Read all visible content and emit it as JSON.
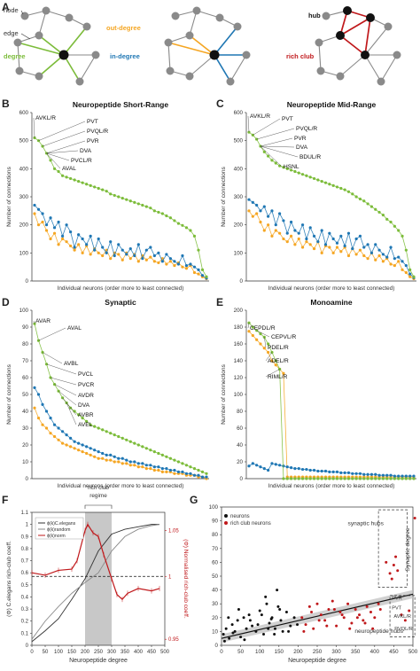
{
  "colors": {
    "green": "#7cbc3a",
    "orange": "#f5a623",
    "blue": "#1f77b4",
    "red": "#c0181b",
    "gray": "#8a8a8a",
    "black": "#111111",
    "dark": "#333333"
  },
  "panel_a": {
    "letter": "A",
    "net1": {
      "node_label": "node",
      "edge_label": "edge",
      "degree_label": "degree"
    },
    "net2": {
      "out_label": "out-degree",
      "in_label": "in-degree"
    },
    "net3": {
      "hub_label": "hub",
      "rich_label": "rich club"
    }
  },
  "chart_data": [
    {
      "panel": "B",
      "type": "scatter",
      "title": "Neuropeptide Short-Range",
      "xlabel": "Individual neurons (order more to least connected)",
      "ylabel": "Number of connections",
      "ylim": [
        0,
        600
      ],
      "yticks": [
        0,
        100,
        200,
        300,
        400,
        500,
        600
      ],
      "annotations": [
        "AVKL/R",
        "PVT",
        "PVQL/R",
        "PVR",
        "DVA",
        "PVCL/R",
        "AVAL"
      ],
      "series": [
        {
          "color": "green",
          "values": [
            510,
            500,
            480,
            455,
            430,
            400,
            390,
            375,
            370,
            365,
            360,
            355,
            350,
            345,
            340,
            335,
            330,
            325,
            320,
            310,
            305,
            300,
            295,
            290,
            285,
            280,
            275,
            270,
            265,
            260,
            250,
            245,
            240,
            232,
            225,
            215,
            205,
            198,
            190,
            180,
            160,
            110,
            40,
            15
          ]
        },
        {
          "color": "blue",
          "values": [
            270,
            255,
            240,
            200,
            225,
            190,
            210,
            160,
            200,
            175,
            120,
            165,
            150,
            130,
            160,
            110,
            150,
            120,
            100,
            140,
            90,
            130,
            110,
            95,
            115,
            90,
            130,
            80,
            110,
            120,
            90,
            100,
            70,
            95,
            80,
            70,
            60,
            90,
            55,
            60,
            50,
            40,
            20,
            10
          ]
        },
        {
          "color": "orange",
          "values": [
            240,
            200,
            210,
            180,
            150,
            170,
            130,
            150,
            140,
            125,
            110,
            130,
            100,
            125,
            95,
            115,
            100,
            90,
            110,
            80,
            100,
            95,
            75,
            100,
            80,
            95,
            70,
            90,
            75,
            85,
            70,
            65,
            80,
            60,
            70,
            55,
            65,
            50,
            45,
            55,
            30,
            25,
            15,
            8
          ]
        }
      ]
    },
    {
      "panel": "C",
      "type": "scatter",
      "title": "Neuropeptide Mid-Range",
      "xlabel": "Individual neurons (order more to least connected)",
      "ylabel": "Number of connections",
      "ylim": [
        0,
        600
      ],
      "yticks": [
        0,
        100,
        200,
        300,
        400,
        500,
        600
      ],
      "annotations": [
        "AVKL/R",
        "PVT",
        "PVQL/R",
        "PVR",
        "DVA",
        "BDUL/R",
        "HSNL"
      ],
      "series": [
        {
          "color": "green",
          "values": [
            530,
            520,
            505,
            480,
            460,
            445,
            430,
            420,
            410,
            405,
            400,
            395,
            390,
            385,
            380,
            375,
            370,
            365,
            360,
            355,
            350,
            345,
            340,
            335,
            330,
            325,
            318,
            310,
            300,
            292,
            285,
            275,
            265,
            255,
            245,
            235,
            220,
            210,
            195,
            180,
            160,
            110,
            40,
            15
          ]
        },
        {
          "color": "blue",
          "values": [
            290,
            280,
            270,
            250,
            265,
            230,
            250,
            200,
            240,
            215,
            170,
            210,
            180,
            170,
            200,
            150,
            190,
            160,
            140,
            180,
            130,
            170,
            150,
            135,
            160,
            125,
            170,
            115,
            150,
            160,
            120,
            130,
            100,
            130,
            110,
            95,
            85,
            120,
            80,
            85,
            70,
            55,
            25,
            12
          ]
        },
        {
          "color": "orange",
          "values": [
            250,
            230,
            240,
            210,
            180,
            200,
            160,
            180,
            170,
            150,
            140,
            160,
            130,
            150,
            120,
            140,
            130,
            115,
            140,
            100,
            125,
            120,
            100,
            120,
            105,
            120,
            90,
            115,
            95,
            110,
            90,
            80,
            100,
            75,
            90,
            70,
            80,
            60,
            55,
            70,
            40,
            30,
            15,
            8
          ]
        }
      ]
    },
    {
      "panel": "D",
      "type": "scatter",
      "title": "Synaptic",
      "xlabel": "Individual neurons (order more to least connected)",
      "ylabel": "Number of connections",
      "ylim": [
        0,
        100
      ],
      "yticks": [
        0,
        10,
        20,
        30,
        40,
        50,
        60,
        70,
        80,
        90,
        100
      ],
      "annotations": [
        "AVAR",
        "AVAL",
        "AVBL",
        "PVCL",
        "PVCR",
        "AVDR",
        "DVA",
        "AVBR",
        "AVEL"
      ],
      "series": [
        {
          "color": "green",
          "values": [
            92,
            82,
            75,
            68,
            60,
            56,
            52,
            48,
            45,
            42,
            40,
            38,
            36,
            34,
            32,
            31,
            30,
            29,
            28,
            27,
            26,
            25,
            24,
            23,
            22,
            21,
            20,
            19,
            18,
            17,
            16,
            15,
            14,
            13,
            12,
            11,
            10,
            9,
            8,
            7,
            6,
            5,
            4,
            3
          ]
        },
        {
          "color": "blue",
          "values": [
            54,
            50,
            44,
            40,
            36,
            32,
            30,
            28,
            26,
            24,
            22,
            21,
            20,
            19,
            18,
            17,
            16,
            15,
            14,
            14,
            13,
            12,
            12,
            11,
            10,
            10,
            9,
            9,
            8,
            8,
            7,
            7,
            6,
            6,
            5,
            5,
            4,
            4,
            3,
            3,
            2,
            2,
            1,
            1
          ]
        },
        {
          "color": "orange",
          "values": [
            42,
            36,
            32,
            30,
            27,
            25,
            23,
            21,
            20,
            19,
            18,
            17,
            16,
            15,
            14,
            13,
            12,
            12,
            11,
            11,
            10,
            10,
            9,
            9,
            8,
            8,
            7,
            7,
            6,
            6,
            5,
            5,
            4,
            4,
            4,
            3,
            3,
            3,
            2,
            2,
            2,
            1,
            1,
            0
          ]
        }
      ]
    },
    {
      "panel": "E",
      "type": "line",
      "title": "Monoamine",
      "xlabel": "Individual neurons (order more to least connected)",
      "ylabel": "Number of connections",
      "ylim": [
        0,
        200
      ],
      "yticks": [
        0,
        20,
        40,
        60,
        80,
        100,
        120,
        140,
        160,
        180,
        200
      ],
      "annotations": [
        "CEPDL/R",
        "CEPVL/R",
        "PDEL/R",
        "ADEL/R",
        "RIML/R"
      ],
      "series": [
        {
          "color": "green",
          "values": [
            185,
            180,
            176,
            172,
            168,
            160,
            150,
            140,
            130,
            0,
            0,
            0,
            0,
            0,
            0,
            0,
            0,
            0,
            0,
            0,
            0,
            0,
            0,
            0,
            0,
            0,
            0,
            0,
            0,
            0,
            0,
            0,
            0,
            0,
            0,
            0,
            0,
            0,
            0,
            0,
            0,
            0,
            0,
            0
          ]
        },
        {
          "color": "blue",
          "values": [
            15,
            18,
            16,
            14,
            12,
            10,
            18,
            17,
            16,
            15,
            14,
            13,
            12,
            12,
            11,
            11,
            10,
            10,
            9,
            9,
            9,
            8,
            8,
            8,
            7,
            7,
            7,
            6,
            6,
            6,
            5,
            5,
            5,
            5,
            4,
            4,
            4,
            4,
            3,
            3,
            3,
            3,
            3,
            3
          ]
        },
        {
          "color": "orange",
          "values": [
            175,
            170,
            165,
            160,
            155,
            150,
            140,
            135,
            130,
            125,
            2,
            2,
            2,
            2,
            2,
            2,
            2,
            2,
            2,
            2,
            2,
            2,
            2,
            2,
            2,
            2,
            2,
            2,
            2,
            2,
            2,
            2,
            2,
            2,
            2,
            2,
            2,
            2,
            2,
            2,
            2,
            2,
            2,
            2
          ]
        }
      ]
    },
    {
      "panel": "F",
      "type": "line",
      "title": "",
      "xlabel": "Neuropeptide degree",
      "ylabel": "(Φ) C.elegans rich-club coeff.",
      "ylabel_right": "(Φ) Normalised rich-club coeff.",
      "regime_label": "rich club regime",
      "shaded_range": [
        200,
        300
      ],
      "dashed_y": 0.57,
      "ylim": [
        0,
        1.1
      ],
      "xlim": [
        0,
        500
      ],
      "xticks": [
        0,
        50,
        100,
        150,
        200,
        250,
        300,
        350,
        400,
        450,
        500
      ],
      "yticks_left": [
        0,
        0.1,
        0.2,
        0.3,
        0.4,
        0.5,
        0.6,
        0.7,
        0.8,
        0.9,
        1,
        1.1
      ],
      "yticks_right": [
        "0.95",
        "1",
        "1.05"
      ],
      "legend": [
        "ɸ(k)C.elegans",
        "ɸ(k)random",
        "ɸ(k)norm"
      ],
      "series": [
        {
          "name": "ɸ(k)C.elegans",
          "color": "dark",
          "x": [
            0,
            50,
            100,
            150,
            200,
            250,
            300,
            350,
            400,
            450,
            480
          ],
          "y": [
            0.03,
            0.12,
            0.22,
            0.38,
            0.55,
            0.78,
            0.92,
            0.96,
            0.98,
            1.0,
            1.0
          ]
        },
        {
          "name": "ɸ(k)random",
          "color": "gray",
          "x": [
            0,
            50,
            100,
            150,
            200,
            250,
            300,
            350,
            400,
            450,
            480
          ],
          "y": [
            0.05,
            0.2,
            0.32,
            0.43,
            0.52,
            0.6,
            0.78,
            0.9,
            0.96,
            0.99,
            1.0
          ]
        },
        {
          "name": "ɸ(k)norm",
          "color": "red",
          "x": [
            0,
            50,
            100,
            150,
            170,
            200,
            210,
            230,
            250,
            270,
            300,
            320,
            340,
            360,
            400,
            450,
            480
          ],
          "y": [
            0.6,
            0.58,
            0.62,
            0.63,
            0.7,
            0.95,
            1.0,
            0.93,
            0.9,
            0.75,
            0.55,
            0.42,
            0.38,
            0.43,
            0.47,
            0.45,
            0.47
          ]
        }
      ]
    },
    {
      "panel": "G",
      "type": "scatter",
      "title": "",
      "xlabel": "Neuropeptide degree",
      "ylabel": "Synaptic degree",
      "xlim": [
        0,
        500
      ],
      "ylim": [
        0,
        100
      ],
      "xticks": [
        0,
        50,
        100,
        150,
        200,
        250,
        300,
        350,
        400,
        450,
        500
      ],
      "yticks": [
        0,
        10,
        20,
        30,
        40,
        50,
        60,
        70,
        80,
        90,
        100
      ],
      "legend": [
        "neurons",
        "rich club neurons"
      ],
      "box_labels": [
        "synaptic hubs",
        "neuropeptide hubs"
      ],
      "point_labels": [
        "PVR",
        "PVT",
        "AVKL/R",
        "PVQL/R"
      ],
      "fit_line": {
        "x": [
          0,
          500
        ],
        "y": [
          5,
          37
        ]
      },
      "series": [
        {
          "name": "neurons",
          "color": "black",
          "x": [
            5,
            12,
            20,
            28,
            35,
            42,
            50,
            58,
            65,
            72,
            80,
            90,
            100,
            110,
            118,
            125,
            132,
            140,
            148,
            155,
            160,
            170,
            180,
            8,
            18,
            30,
            45,
            60,
            75,
            95,
            105,
            115,
            122,
            130,
            138,
            145,
            152,
            175,
            190,
            198
          ],
          "y": [
            8,
            12,
            5,
            15,
            10,
            18,
            6,
            20,
            12,
            22,
            14,
            10,
            25,
            8,
            30,
            16,
            20,
            12,
            28,
            18,
            10,
            24,
            14,
            3,
            20,
            9,
            26,
            4,
            18,
            15,
            22,
            35,
            12,
            19,
            8,
            40,
            26,
            10,
            20,
            15
          ]
        },
        {
          "name": "rich club neurons",
          "color": "red",
          "x": [
            210,
            220,
            230,
            240,
            250,
            260,
            270,
            280,
            290,
            300,
            310,
            320,
            330,
            340,
            350,
            360,
            370,
            380,
            390,
            400,
            410,
            215,
            235,
            255,
            275,
            295,
            315,
            335,
            355,
            375,
            395,
            415,
            430,
            440,
            445,
            450,
            455,
            460,
            470,
            480,
            490,
            505
          ],
          "y": [
            20,
            15,
            28,
            12,
            30,
            22,
            18,
            26,
            32,
            14,
            24,
            20,
            30,
            16,
            26,
            22,
            18,
            28,
            24,
            20,
            30,
            10,
            24,
            18,
            14,
            26,
            22,
            12,
            20,
            16,
            12,
            26,
            60,
            52,
            48,
            58,
            64,
            54,
            22,
            18,
            25,
            92
          ]
        }
      ]
    }
  ],
  "letters": {
    "b": "B",
    "c": "C",
    "d": "D",
    "e": "E",
    "f": "F",
    "g": "G"
  }
}
